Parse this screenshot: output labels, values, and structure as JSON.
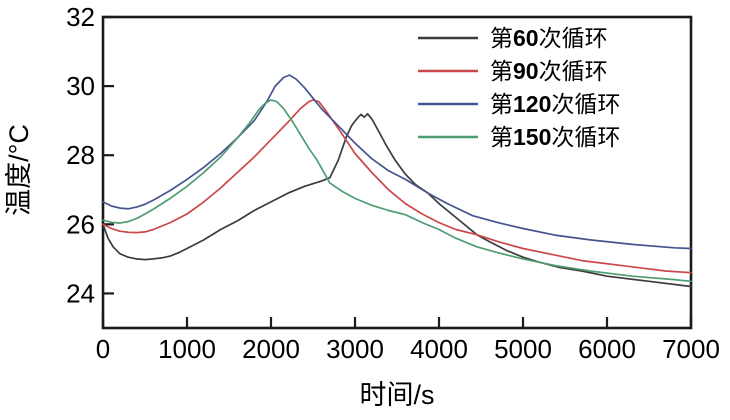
{
  "figure": {
    "background": "#ffffff",
    "frame_color": "#1a1a1a",
    "text_color": "#000000"
  },
  "chart_data": {
    "type": "line",
    "title": "",
    "xlabel": "时间/s",
    "ylabel": "温度/°C",
    "xlim": [
      0,
      7000
    ],
    "ylim": [
      23,
      32
    ],
    "x_ticks": [
      0,
      1000,
      2000,
      3000,
      4000,
      5000,
      6000,
      7000
    ],
    "y_ticks": [
      24,
      26,
      28,
      30,
      32
    ],
    "grid": false,
    "legend_position": "top-right-inside",
    "series": [
      {
        "key": "cycle-60",
        "name": "第60次循环",
        "name_parts": {
          "prefix": "第",
          "number": "60",
          "suffix": "次循环"
        },
        "color": "#3c3c3c",
        "x": [
          0,
          60,
          120,
          200,
          300,
          400,
          500,
          600,
          700,
          800,
          900,
          1000,
          1200,
          1400,
          1600,
          1800,
          2000,
          2200,
          2400,
          2600,
          2700,
          2800,
          2900,
          2960,
          3020,
          3070,
          3110,
          3150,
          3200,
          3280,
          3380,
          3480,
          3600,
          3720,
          3870,
          4000,
          4200,
          4450,
          4600,
          4800,
          5000,
          5200,
          5440,
          5700,
          6000,
          6500,
          7000
        ],
        "y": [
          26.0,
          25.6,
          25.35,
          25.15,
          25.05,
          25.0,
          24.98,
          25.0,
          25.03,
          25.08,
          25.18,
          25.3,
          25.55,
          25.85,
          26.1,
          26.4,
          26.65,
          26.9,
          27.1,
          27.25,
          27.35,
          27.85,
          28.55,
          28.85,
          29.05,
          29.18,
          29.1,
          29.2,
          29.05,
          28.7,
          28.25,
          27.85,
          27.45,
          27.15,
          26.9,
          26.6,
          26.2,
          25.7,
          25.5,
          25.25,
          25.05,
          24.9,
          24.75,
          24.65,
          24.5,
          24.35,
          24.2
        ]
      },
      {
        "key": "cycle-90",
        "name": "第90次循环",
        "name_parts": {
          "prefix": "第",
          "number": "90",
          "suffix": "次循环"
        },
        "color": "#cc4747",
        "x": [
          0,
          100,
          200,
          300,
          400,
          500,
          600,
          800,
          1000,
          1200,
          1400,
          1600,
          1800,
          2000,
          2200,
          2350,
          2450,
          2500,
          2570,
          2650,
          2750,
          2850,
          3000,
          3200,
          3400,
          3600,
          3800,
          4000,
          4200,
          4450,
          4700,
          5000,
          5300,
          5700,
          6200,
          6700,
          7000
        ],
        "y": [
          26.0,
          25.88,
          25.8,
          25.77,
          25.76,
          25.78,
          25.85,
          26.05,
          26.3,
          26.65,
          27.05,
          27.5,
          27.95,
          28.45,
          28.95,
          29.35,
          29.55,
          29.6,
          29.55,
          29.3,
          28.95,
          28.6,
          28.05,
          27.5,
          27.0,
          26.6,
          26.3,
          26.05,
          25.85,
          25.7,
          25.5,
          25.3,
          25.15,
          24.95,
          24.8,
          24.65,
          24.6
        ]
      },
      {
        "key": "cycle-120",
        "name": "第120次循环",
        "name_parts": {
          "prefix": "第",
          "number": "120",
          "suffix": "次循环"
        },
        "color": "#465390",
        "x": [
          0,
          100,
          200,
          300,
          400,
          500,
          600,
          800,
          1000,
          1200,
          1400,
          1600,
          1800,
          1950,
          2050,
          2150,
          2220,
          2300,
          2400,
          2500,
          2600,
          2700,
          2800,
          3000,
          3200,
          3400,
          3600,
          3870,
          4100,
          4400,
          4700,
          5000,
          5400,
          5800,
          6300,
          6800,
          7000
        ],
        "y": [
          26.65,
          26.53,
          26.47,
          26.45,
          26.5,
          26.58,
          26.7,
          26.98,
          27.3,
          27.65,
          28.05,
          28.5,
          29.0,
          29.55,
          30.0,
          30.25,
          30.32,
          30.2,
          29.95,
          29.65,
          29.35,
          29.1,
          28.85,
          28.35,
          27.9,
          27.55,
          27.3,
          26.9,
          26.6,
          26.25,
          26.05,
          25.88,
          25.68,
          25.55,
          25.42,
          25.32,
          25.3
        ]
      },
      {
        "key": "cycle-150",
        "name": "第150次循环",
        "name_parts": {
          "prefix": "第",
          "number": "150",
          "suffix": "次循环"
        },
        "color": "#4f9d72",
        "x": [
          0,
          100,
          200,
          300,
          400,
          500,
          600,
          800,
          1000,
          1200,
          1400,
          1600,
          1750,
          1850,
          1930,
          2000,
          2070,
          2150,
          2250,
          2350,
          2450,
          2550,
          2700,
          2850,
          3000,
          3200,
          3400,
          3600,
          3800,
          4000,
          4200,
          4450,
          4700,
          5000,
          5400,
          5800,
          6300,
          6800,
          7000
        ],
        "y": [
          26.12,
          26.06,
          26.04,
          26.08,
          26.17,
          26.3,
          26.44,
          26.75,
          27.1,
          27.5,
          27.95,
          28.5,
          28.95,
          29.3,
          29.5,
          29.6,
          29.55,
          29.35,
          29.0,
          28.6,
          28.2,
          27.85,
          27.2,
          26.95,
          26.75,
          26.55,
          26.4,
          26.28,
          26.05,
          25.85,
          25.6,
          25.35,
          25.18,
          25.0,
          24.8,
          24.65,
          24.5,
          24.4,
          24.35
        ]
      }
    ]
  }
}
